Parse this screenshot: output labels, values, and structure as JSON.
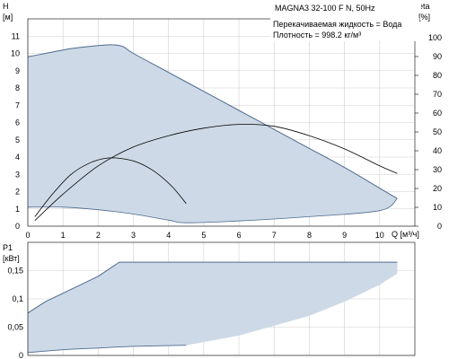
{
  "chart_data": [
    {
      "type": "line",
      "title": "MAGNA3 32-100 F N, 50Hz",
      "annotations": [
        "Перекачиваемая жидкость = Вода",
        "Плотность = 998.2 кг/м³"
      ],
      "xlabel": "Q [м³/ч]",
      "xlim": [
        0,
        11
      ],
      "x_ticks": [
        0,
        1,
        2,
        3,
        4,
        5,
        6,
        7,
        8,
        9,
        10
      ],
      "ylabel_left_top": "H",
      "ylabel_left_unit": "[м]",
      "ylim_left": [
        0,
        12
      ],
      "y_ticks_left": [
        0,
        1,
        2,
        3,
        4,
        5,
        6,
        7,
        8,
        9,
        10,
        11
      ],
      "ylabel_right_top": "eta",
      "ylabel_right_unit": "[%]",
      "ylim_right": [
        0,
        110
      ],
      "y_ticks_right": [
        0,
        10,
        20,
        30,
        40,
        50,
        60,
        70,
        80,
        90,
        100
      ],
      "grid": true,
      "colors": {
        "fill": "#cdd9e6",
        "envelope": "#4f6a8f",
        "curve": "#000000",
        "grid": "#cfcfcf"
      },
      "series": [
        {
          "role": "operating-range-upper-H",
          "x": [
            0,
            0.5,
            1,
            1.5,
            2,
            2.4,
            2.7,
            3,
            4,
            5,
            6,
            7,
            8,
            9,
            10,
            10.5
          ],
          "y": [
            9.8,
            10.0,
            10.2,
            10.35,
            10.45,
            10.5,
            10.4,
            10.0,
            8.9,
            7.8,
            6.7,
            5.6,
            4.5,
            3.4,
            2.2,
            1.6
          ]
        },
        {
          "role": "operating-range-lower-H",
          "x": [
            0,
            1,
            2,
            3,
            4,
            4.5,
            6,
            8,
            10,
            10.5
          ],
          "y": [
            1.1,
            1.1,
            0.95,
            0.7,
            0.35,
            0.2,
            0.3,
            0.55,
            0.9,
            1.6
          ]
        },
        {
          "role": "efficiency-max",
          "x": [
            0.2,
            1,
            2,
            3,
            4,
            5,
            6,
            7,
            8,
            9,
            10,
            10.5
          ],
          "y": [
            3,
            17,
            32,
            42,
            48,
            52,
            54,
            53,
            48,
            41,
            32,
            28
          ]
        },
        {
          "role": "efficiency-min",
          "x": [
            0.2,
            0.7,
            1.2,
            1.7,
            2.2,
            2.6,
            3.1,
            3.6,
            4.1,
            4.5
          ],
          "y": [
            5,
            17,
            27,
            33,
            36,
            36,
            34,
            29,
            21,
            12
          ]
        }
      ]
    },
    {
      "type": "area",
      "ylabel_top": "P1",
      "ylabel_unit": "[кВт]",
      "xlim": [
        0,
        11
      ],
      "ylim": [
        0,
        0.2
      ],
      "y_ticks": [
        "0",
        "0,05",
        "0,1",
        "0,15"
      ],
      "y_tick_values": [
        0,
        0.05,
        0.1,
        0.15
      ],
      "grid": true,
      "series": [
        {
          "role": "power-upper",
          "x": [
            0,
            0.5,
            1,
            1.5,
            2,
            2.6,
            10.5
          ],
          "y": [
            0.075,
            0.095,
            0.11,
            0.125,
            0.14,
            0.165,
            0.165
          ]
        },
        {
          "role": "power-lower",
          "x": [
            0,
            1,
            2,
            3,
            4.5
          ],
          "y": [
            0.005,
            0.01,
            0.013,
            0.016,
            0.018
          ]
        },
        {
          "role": "power-lower-right",
          "x": [
            4.5,
            6,
            8,
            9,
            10,
            10.5
          ],
          "y": [
            0.018,
            0.035,
            0.07,
            0.095,
            0.125,
            0.145
          ]
        }
      ]
    }
  ]
}
